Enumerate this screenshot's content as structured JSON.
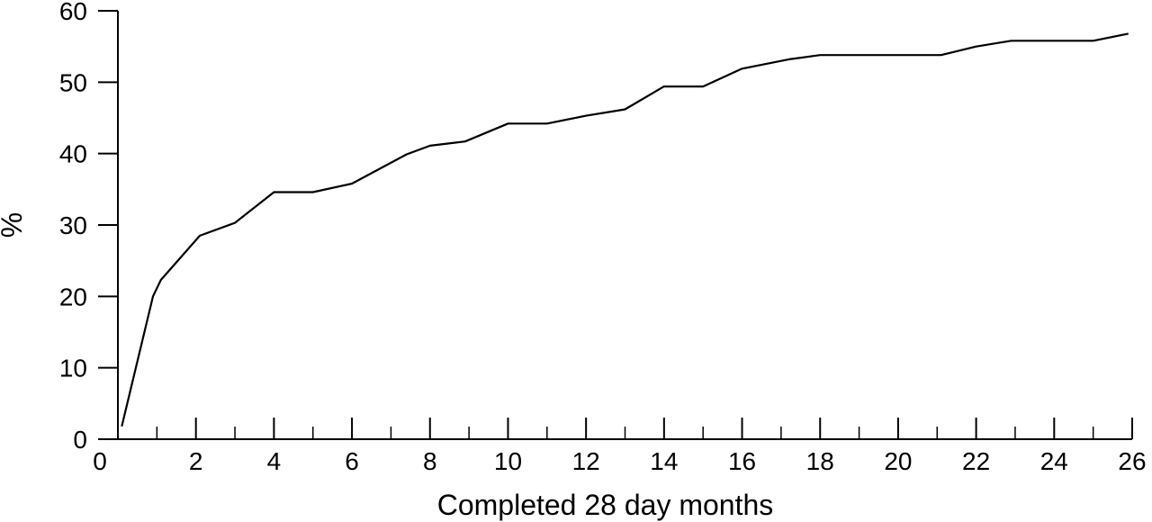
{
  "chart_data": {
    "type": "line",
    "xlabel": "Completed 28 day months",
    "ylabel": "%",
    "xlim": [
      0,
      26
    ],
    "ylim": [
      0,
      60
    ],
    "x_ticks": [
      0,
      2,
      4,
      6,
      8,
      10,
      12,
      14,
      16,
      18,
      20,
      22,
      24,
      26
    ],
    "x_minor_ticks": [
      1,
      3,
      5,
      7,
      9,
      11,
      13,
      15,
      17,
      19,
      21,
      23,
      25
    ],
    "y_ticks": [
      0,
      10,
      20,
      30,
      40,
      50,
      60
    ],
    "grid": false,
    "line_color": "#000000",
    "series": [
      {
        "x": [
          0.1,
          0.9,
          1.1,
          2.1,
          3.0,
          4.0,
          5.0,
          6.0,
          7.4,
          8.0,
          8.9,
          10.0,
          11.0,
          12.0,
          13.0,
          14.0,
          15.0,
          16.0,
          17.2,
          18.0,
          19.0,
          20.0,
          21.1,
          22.0,
          22.9,
          24.0,
          25.0,
          25.9
        ],
        "y": [
          1.8,
          20.0,
          22.3,
          28.5,
          30.3,
          34.6,
          34.6,
          35.8,
          39.9,
          41.1,
          41.7,
          44.2,
          44.2,
          45.3,
          46.2,
          49.4,
          49.4,
          51.9,
          53.2,
          53.8,
          53.8,
          53.8,
          53.8,
          55.0,
          55.8,
          55.8,
          55.8,
          56.8
        ]
      }
    ]
  }
}
